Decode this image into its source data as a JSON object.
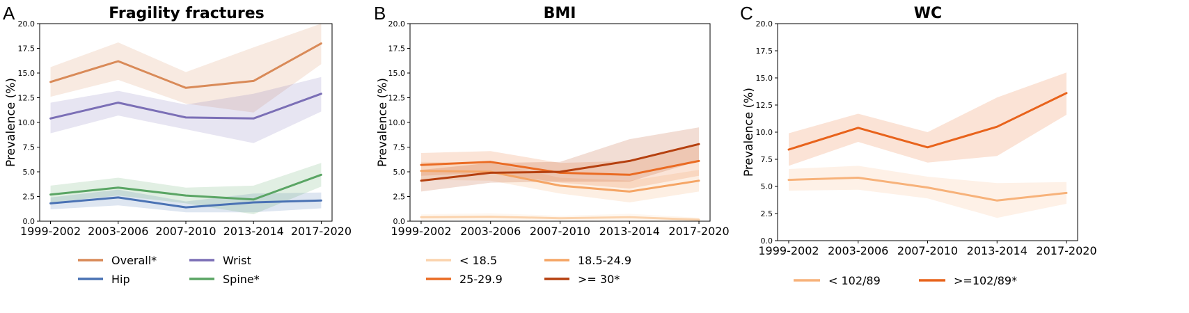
{
  "chart_data": [
    {
      "type": "line",
      "panel_label": "A",
      "title": "Fragility fractures",
      "xlabel": "",
      "ylabel": "Prevalence (%)",
      "categories": [
        "1999-2002",
        "2003-2006",
        "2007-2010",
        "2013-2014",
        "2017-2020"
      ],
      "ylim": [
        0,
        20
      ],
      "yticks": [
        "0.0",
        "2.5",
        "5.0",
        "7.5",
        "10.0",
        "12.5",
        "15.0",
        "17.5",
        "20.0"
      ],
      "grid": false,
      "legend_placement": "bottom",
      "legend_columns": 2,
      "series": [
        {
          "name": "Overall*",
          "color": "#d98a58",
          "values": [
            14.1,
            16.2,
            13.5,
            14.2,
            18.0
          ],
          "lower": [
            12.6,
            14.3,
            11.9,
            11.0,
            15.9
          ],
          "upper": [
            15.6,
            18.1,
            15.1,
            17.6,
            20.0
          ]
        },
        {
          "name": "Wrist",
          "color": "#7b6fb6",
          "values": [
            10.4,
            12.0,
            10.5,
            10.4,
            12.9
          ],
          "lower": [
            8.9,
            10.7,
            9.3,
            7.9,
            11.1
          ],
          "upper": [
            12.0,
            13.2,
            11.8,
            12.9,
            14.6
          ]
        },
        {
          "name": "Hip",
          "color": "#4a72b4",
          "values": [
            1.8,
            2.4,
            1.4,
            1.9,
            2.1
          ],
          "lower": [
            1.2,
            1.6,
            0.9,
            0.9,
            1.3
          ],
          "upper": [
            2.4,
            3.2,
            2.0,
            2.8,
            2.9
          ]
        },
        {
          "name": "Spine*",
          "color": "#5aa564",
          "values": [
            2.7,
            3.4,
            2.6,
            2.2,
            4.7
          ],
          "lower": [
            1.9,
            2.6,
            1.8,
            0.7,
            3.5
          ],
          "upper": [
            3.6,
            4.4,
            3.4,
            3.6,
            5.9
          ]
        }
      ]
    },
    {
      "type": "line",
      "panel_label": "B",
      "title": "BMI",
      "xlabel": "",
      "ylabel": "Prevalence (%)",
      "categories": [
        "1999-2002",
        "2003-2006",
        "2007-2010",
        "2013-2014",
        "2017-2020"
      ],
      "ylim": [
        0,
        20
      ],
      "yticks": [
        "0.0",
        "2.5",
        "5.0",
        "7.5",
        "10.0",
        "12.5",
        "15.0",
        "17.5",
        "20.0"
      ],
      "grid": false,
      "legend_placement": "bottom",
      "legend_columns": 2,
      "series": [
        {
          "name": "< 18.5",
          "color": "#fbd3ad",
          "values": [
            0.4,
            0.45,
            0.3,
            0.4,
            0.15
          ],
          "lower": [
            0.1,
            0.15,
            0.1,
            0.1,
            0.0
          ],
          "upper": [
            0.7,
            0.8,
            0.55,
            0.75,
            0.35
          ]
        },
        {
          "name": "18.5-24.9",
          "color": "#f5a565",
          "values": [
            5.1,
            5.0,
            3.6,
            3.0,
            4.1
          ],
          "lower": [
            4.2,
            4.1,
            2.8,
            1.9,
            3.0
          ],
          "upper": [
            6.0,
            5.9,
            4.4,
            4.1,
            5.2
          ]
        },
        {
          "name": "25-29.9",
          "color": "#ea6b23",
          "values": [
            5.7,
            6.0,
            4.9,
            4.7,
            6.1
          ],
          "lower": [
            4.6,
            4.9,
            3.9,
            3.3,
            4.6
          ],
          "upper": [
            6.9,
            7.1,
            5.9,
            6.1,
            7.7
          ]
        },
        {
          "name": ">= 30*",
          "color": "#b5400f",
          "values": [
            4.1,
            4.9,
            5.0,
            6.1,
            7.8
          ],
          "lower": [
            3.0,
            3.9,
            4.0,
            4.0,
            6.1
          ],
          "upper": [
            5.2,
            5.9,
            6.0,
            8.3,
            9.5
          ]
        }
      ]
    },
    {
      "type": "line",
      "panel_label": "C",
      "title": "WC",
      "xlabel": "",
      "ylabel": "Prevalence (%)",
      "categories": [
        "1999-2002",
        "2003-2006",
        "2007-2010",
        "2013-2014",
        "2017-2020"
      ],
      "ylim": [
        0,
        20
      ],
      "yticks": [
        "0.0",
        "2.5",
        "5.0",
        "7.5",
        "10.0",
        "12.5",
        "15.0",
        "17.5",
        "20.0"
      ],
      "grid": false,
      "legend_placement": "bottom",
      "legend_columns": 2,
      "series": [
        {
          "name": "< 102/89",
          "color": "#f7b27a",
          "values": [
            5.6,
            5.8,
            4.9,
            3.7,
            4.4
          ],
          "lower": [
            4.6,
            4.7,
            3.9,
            2.1,
            3.4
          ],
          "upper": [
            6.6,
            6.9,
            5.9,
            5.3,
            5.4
          ]
        },
        {
          "name": ">=102/89*",
          "color": "#e8631c",
          "values": [
            8.4,
            10.4,
            8.6,
            10.5,
            13.6
          ],
          "lower": [
            6.9,
            9.1,
            7.2,
            7.8,
            11.6
          ],
          "upper": [
            9.9,
            11.7,
            10.0,
            13.2,
            15.5
          ]
        }
      ]
    }
  ]
}
